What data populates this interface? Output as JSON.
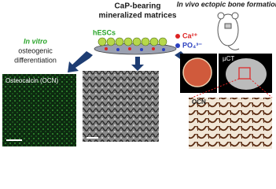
{
  "header": {
    "title_line1": "CaP-bearing",
    "title_line2": "mineralized matrices"
  },
  "matrix": {
    "cells_label": "hESCs",
    "ion1": "Ca²⁺",
    "ion2": "PO₄³⁻"
  },
  "in_vitro": {
    "line1": "In vitro",
    "line2": "osteogenic",
    "line3": "differentiation",
    "panel_label": "Osteocalcin (OCN)"
  },
  "in_vivo": {
    "title": "In vivo ectopic bone formation",
    "ct_label": "µCT",
    "histology_label": "OCN"
  }
}
